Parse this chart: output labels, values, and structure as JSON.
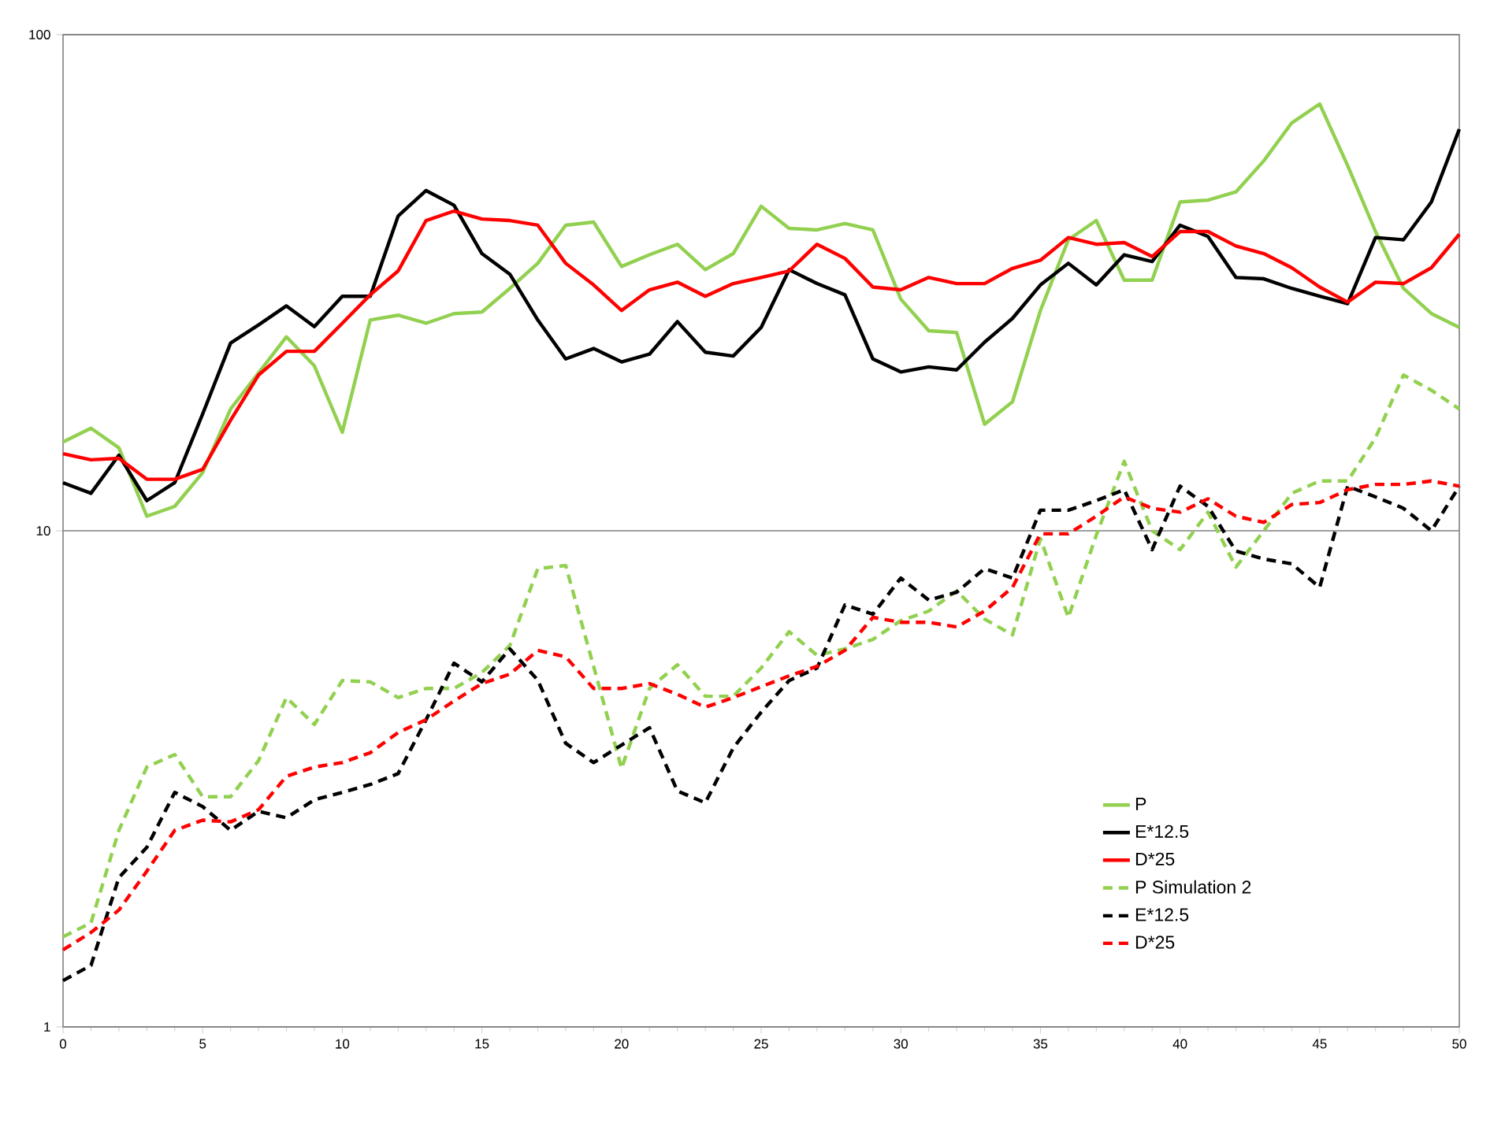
{
  "chart_data": {
    "type": "line",
    "log": "y",
    "grid": "y",
    "legend": "bottom right",
    "marker": "none",
    "x": [
      0,
      1,
      2,
      3,
      4,
      5,
      6,
      7,
      8,
      9,
      10,
      11,
      12,
      13,
      14,
      15,
      16,
      17,
      18,
      19,
      20,
      21,
      22,
      23,
      24,
      25,
      26,
      27,
      28,
      29,
      30,
      31,
      32,
      33,
      34,
      35,
      36,
      37,
      38,
      39,
      40,
      41,
      42,
      43,
      44,
      45,
      46,
      47,
      48,
      49,
      50
    ],
    "xlim": [
      0,
      50
    ],
    "xticks": [
      0,
      5,
      10,
      15,
      20,
      25,
      30,
      35,
      40,
      45,
      50
    ],
    "ylim": [
      1,
      100
    ],
    "yticks": [
      1,
      10,
      100
    ],
    "series": [
      {
        "name": "P",
        "color": "#92d050",
        "line_style": "solid",
        "values": [
          15.1,
          16.1,
          14.7,
          10.7,
          11.2,
          13.1,
          17.6,
          20.8,
          24.6,
          21.5,
          15.8,
          26.6,
          27.2,
          26.2,
          27.4,
          27.6,
          30.8,
          34.6,
          41.3,
          41.9,
          34.1,
          36,
          37.8,
          33.6,
          36.2,
          45.1,
          40.7,
          40.4,
          41.6,
          40.4,
          29.3,
          25.3,
          25.1,
          16.4,
          18.2,
          27.8,
          38.6,
          42.2,
          32,
          32,
          46,
          46.4,
          48.2,
          55.7,
          66.4,
          72.5,
          54.5,
          40.1,
          30.8,
          27.4,
          25.7
        ]
      },
      {
        "name": "E*12.5",
        "color": "#000000",
        "line_style": "solid",
        "values": [
          12.5,
          11.9,
          14.2,
          11.5,
          12.5,
          17.2,
          23.9,
          26,
          28.4,
          25.8,
          29.7,
          29.7,
          43.1,
          48.5,
          45.3,
          36.2,
          32.9,
          26.6,
          22.2,
          23.3,
          21.9,
          22.7,
          26.4,
          22.9,
          22.5,
          25.7,
          33.6,
          31.5,
          29.9,
          22.2,
          20.9,
          21.4,
          21.1,
          24,
          26.8,
          31.3,
          34.6,
          31.3,
          36,
          34.9,
          41.3,
          39.2,
          32.4,
          32.2,
          30.8,
          29.7,
          28.7,
          39,
          38.6,
          46,
          64.5
        ]
      },
      {
        "name": "D*25",
        "color": "#ff0000",
        "line_style": "solid",
        "values": [
          14.3,
          13.9,
          14,
          12.7,
          12.7,
          13.3,
          16.7,
          20.6,
          23,
          23,
          26.2,
          29.9,
          33.4,
          42.2,
          44.1,
          42.5,
          42.2,
          41.3,
          34.6,
          31.3,
          27.8,
          30.6,
          31.7,
          29.7,
          31.5,
          32.4,
          33.4,
          37.8,
          35.4,
          31,
          30.6,
          32.4,
          31.5,
          31.5,
          33.8,
          35.1,
          39,
          37.8,
          38.1,
          35.7,
          40.1,
          40.1,
          37.5,
          36.2,
          33.9,
          31,
          28.9,
          31.7,
          31.5,
          33.9,
          39.6
        ]
      },
      {
        "name": "P Simulation 2",
        "color": "#92d050",
        "line_style": "dashed",
        "values": [
          1.52,
          1.62,
          2.49,
          3.34,
          3.54,
          2.91,
          2.91,
          3.44,
          4.61,
          4.07,
          4.99,
          4.96,
          4.61,
          4.81,
          4.81,
          5.18,
          5.87,
          8.39,
          8.51,
          5.33,
          3.32,
          4.81,
          5.37,
          4.64,
          4.64,
          5.29,
          6.26,
          5.61,
          5.78,
          6.04,
          6.59,
          6.89,
          7.57,
          6.64,
          6.17,
          9.64,
          6.69,
          9.8,
          13.8,
          10,
          9.16,
          10.9,
          8.45,
          10,
          11.9,
          12.6,
          12.6,
          15.4,
          20.6,
          19.2,
          17.6
        ]
      },
      {
        "name": "E*12.5",
        "color": "#000000",
        "line_style": "dashed",
        "values": [
          1.24,
          1.33,
          2.0,
          2.3,
          2.97,
          2.78,
          2.49,
          2.72,
          2.64,
          2.87,
          2.97,
          3.08,
          3.24,
          4.16,
          5.41,
          4.96,
          5.78,
          5.0,
          3.73,
          3.41,
          3.7,
          4.01,
          2.99,
          2.83,
          3.65,
          4.31,
          4.99,
          5.29,
          7.09,
          6.79,
          8.03,
          7.25,
          7.52,
          8.39,
          8.03,
          11,
          11,
          11.5,
          12.1,
          9.16,
          12.3,
          11.2,
          9.1,
          8.77,
          8.58,
          7.69,
          12.3,
          11.7,
          11.1,
          10,
          12.3
        ]
      },
      {
        "name": "D*25",
        "color": "#ff0000",
        "line_style": "dashed",
        "values": [
          1.43,
          1.55,
          1.72,
          2.06,
          2.49,
          2.61,
          2.59,
          2.74,
          3.2,
          3.34,
          3.41,
          3.57,
          3.92,
          4.16,
          4.54,
          4.92,
          5.14,
          5.74,
          5.57,
          4.81,
          4.81,
          4.92,
          4.68,
          4.41,
          4.61,
          4.85,
          5.1,
          5.33,
          5.74,
          6.69,
          6.54,
          6.54,
          6.4,
          6.89,
          7.69,
          9.86,
          9.86,
          10.7,
          11.7,
          11.1,
          10.9,
          11.6,
          10.7,
          10.4,
          11.3,
          11.4,
          12.1,
          12.4,
          12.4,
          12.6,
          12.3
        ]
      }
    ]
  }
}
